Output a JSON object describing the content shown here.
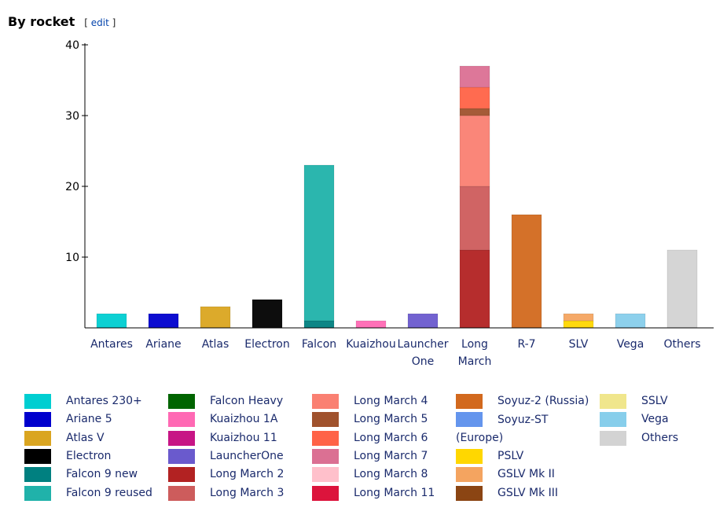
{
  "heading": {
    "title": "By rocket",
    "edit_open": "[ ",
    "edit_link": "edit",
    "edit_close": " ]"
  },
  "colors": {
    "Antares 230+": "#00ced1",
    "Ariane 5": "#0000cd",
    "Atlas V": "#daa520",
    "Electron": "#000000",
    "Falcon 9 new": "#008080",
    "Falcon 9 reused": "#20b2aa",
    "Falcon Heavy": "#006400",
    "Kuaizhou 1A": "#ff69b4",
    "Kuaizhou 11": "#c71585",
    "LauncherOne": "#6a5acd",
    "Long March 2": "#b22222",
    "Long March 3": "#cd5c5c",
    "Long March 4": "#fa8072",
    "Long March 5": "#a0522d",
    "Long March 6": "#ff6347",
    "Long March 7": "#db7093",
    "Long March 8": "#ffc0cb",
    "Long March 11": "#dc143c",
    "Soyuz-2 (Russia)": "#d2691e",
    "Soyuz-ST (Europe)": "#6495ed",
    "PSLV": "#ffd700",
    "GSLV Mk II": "#f4a460",
    "GSLV Mk III": "#8b4513",
    "SSLV": "#f0e68c",
    "Vega": "#87ceeb",
    "Others": "#d3d3d3"
  },
  "chart_data": {
    "type": "bar",
    "stacked": true,
    "categories": [
      "Antares",
      "Ariane",
      "Atlas",
      "Electron",
      "Falcon",
      "Kuaizhou",
      "Launcher One",
      "Long March",
      "R-7",
      "SLV",
      "Vega",
      "Others"
    ],
    "category_lines": [
      [
        "Antares"
      ],
      [
        "Ariane"
      ],
      [
        "Atlas"
      ],
      [
        "Electron"
      ],
      [
        "Falcon"
      ],
      [
        "Kuaizhou"
      ],
      [
        "Launcher",
        "One"
      ],
      [
        "Long",
        "March"
      ],
      [
        "R-7"
      ],
      [
        "SLV"
      ],
      [
        "Vega"
      ],
      [
        "Others"
      ]
    ],
    "ylim": [
      0,
      40
    ],
    "yticks": [
      10,
      20,
      30,
      40
    ],
    "grid": false,
    "legend_position": "bottom",
    "series": [
      {
        "name": "Antares 230+",
        "values": [
          2,
          0,
          0,
          0,
          0,
          0,
          0,
          0,
          0,
          0,
          0,
          0
        ]
      },
      {
        "name": "Ariane 5",
        "values": [
          0,
          2,
          0,
          0,
          0,
          0,
          0,
          0,
          0,
          0,
          0,
          0
        ]
      },
      {
        "name": "Atlas V",
        "values": [
          0,
          0,
          3,
          0,
          0,
          0,
          0,
          0,
          0,
          0,
          0,
          0
        ]
      },
      {
        "name": "Electron",
        "values": [
          0,
          0,
          0,
          4,
          0,
          0,
          0,
          0,
          0,
          0,
          0,
          0
        ]
      },
      {
        "name": "Falcon 9 new",
        "values": [
          0,
          0,
          0,
          0,
          1,
          0,
          0,
          0,
          0,
          0,
          0,
          0
        ]
      },
      {
        "name": "Falcon 9 reused",
        "values": [
          0,
          0,
          0,
          0,
          22,
          0,
          0,
          0,
          0,
          0,
          0,
          0
        ]
      },
      {
        "name": "Falcon Heavy",
        "values": [
          0,
          0,
          0,
          0,
          0,
          0,
          0,
          0,
          0,
          0,
          0,
          0
        ]
      },
      {
        "name": "Kuaizhou 1A",
        "values": [
          0,
          0,
          0,
          0,
          0,
          1,
          0,
          0,
          0,
          0,
          0,
          0
        ]
      },
      {
        "name": "Kuaizhou 11",
        "values": [
          0,
          0,
          0,
          0,
          0,
          0,
          0,
          0,
          0,
          0,
          0,
          0
        ]
      },
      {
        "name": "LauncherOne",
        "values": [
          0,
          0,
          0,
          0,
          0,
          0,
          2,
          0,
          0,
          0,
          0,
          0
        ]
      },
      {
        "name": "Long March 2",
        "values": [
          0,
          0,
          0,
          0,
          0,
          0,
          0,
          11,
          0,
          0,
          0,
          0
        ]
      },
      {
        "name": "Long March 3",
        "values": [
          0,
          0,
          0,
          0,
          0,
          0,
          0,
          9,
          0,
          0,
          0,
          0
        ]
      },
      {
        "name": "Long March 4",
        "values": [
          0,
          0,
          0,
          0,
          0,
          0,
          0,
          10,
          0,
          0,
          0,
          0
        ]
      },
      {
        "name": "Long March 5",
        "values": [
          0,
          0,
          0,
          0,
          0,
          0,
          0,
          1,
          0,
          0,
          0,
          0
        ]
      },
      {
        "name": "Long March 6",
        "values": [
          0,
          0,
          0,
          0,
          0,
          0,
          0,
          3,
          0,
          0,
          0,
          0
        ]
      },
      {
        "name": "Long March 7",
        "values": [
          0,
          0,
          0,
          0,
          0,
          0,
          0,
          3,
          0,
          0,
          0,
          0
        ]
      },
      {
        "name": "Long March 8",
        "values": [
          0,
          0,
          0,
          0,
          0,
          0,
          0,
          0,
          0,
          0,
          0,
          0
        ]
      },
      {
        "name": "Long March 11",
        "values": [
          0,
          0,
          0,
          0,
          0,
          0,
          0,
          0,
          0,
          0,
          0,
          0
        ]
      },
      {
        "name": "Soyuz-2 (Russia)",
        "values": [
          0,
          0,
          0,
          0,
          0,
          0,
          0,
          0,
          16,
          0,
          0,
          0
        ]
      },
      {
        "name": "Soyuz-ST (Europe)",
        "values": [
          0,
          0,
          0,
          0,
          0,
          0,
          0,
          0,
          0,
          0,
          0,
          0
        ]
      },
      {
        "name": "PSLV",
        "values": [
          0,
          0,
          0,
          0,
          0,
          0,
          0,
          0,
          0,
          1,
          0,
          0
        ]
      },
      {
        "name": "GSLV Mk II",
        "values": [
          0,
          0,
          0,
          0,
          0,
          0,
          0,
          0,
          0,
          1,
          0,
          0
        ]
      },
      {
        "name": "GSLV Mk III",
        "values": [
          0,
          0,
          0,
          0,
          0,
          0,
          0,
          0,
          0,
          0,
          0,
          0
        ]
      },
      {
        "name": "SSLV",
        "values": [
          0,
          0,
          0,
          0,
          0,
          0,
          0,
          0,
          0,
          0,
          0,
          0
        ]
      },
      {
        "name": "Vega",
        "values": [
          0,
          0,
          0,
          0,
          0,
          0,
          0,
          0,
          0,
          0,
          2,
          0
        ]
      },
      {
        "name": "Others",
        "values": [
          0,
          0,
          0,
          0,
          0,
          0,
          0,
          0,
          0,
          0,
          0,
          11
        ]
      }
    ]
  },
  "legend": {
    "columns": [
      [
        "Antares 230+",
        "Ariane 5",
        "Atlas V",
        "Electron",
        "Falcon 9 new",
        "Falcon 9 reused"
      ],
      [
        "Falcon Heavy",
        "Kuaizhou 1A",
        "Kuaizhou 11",
        "LauncherOne",
        "Long March 2",
        "Long March 3"
      ],
      [
        "Long March 4",
        "Long March 5",
        "Long March 6",
        "Long March 7",
        "Long March 8",
        "Long March 11"
      ],
      [
        "Soyuz-2 (Russia)",
        "Soyuz-ST (Europe)",
        "PSLV",
        "GSLV Mk II",
        "GSLV Mk III"
      ],
      [
        "SSLV",
        "Vega",
        "Others"
      ]
    ]
  }
}
